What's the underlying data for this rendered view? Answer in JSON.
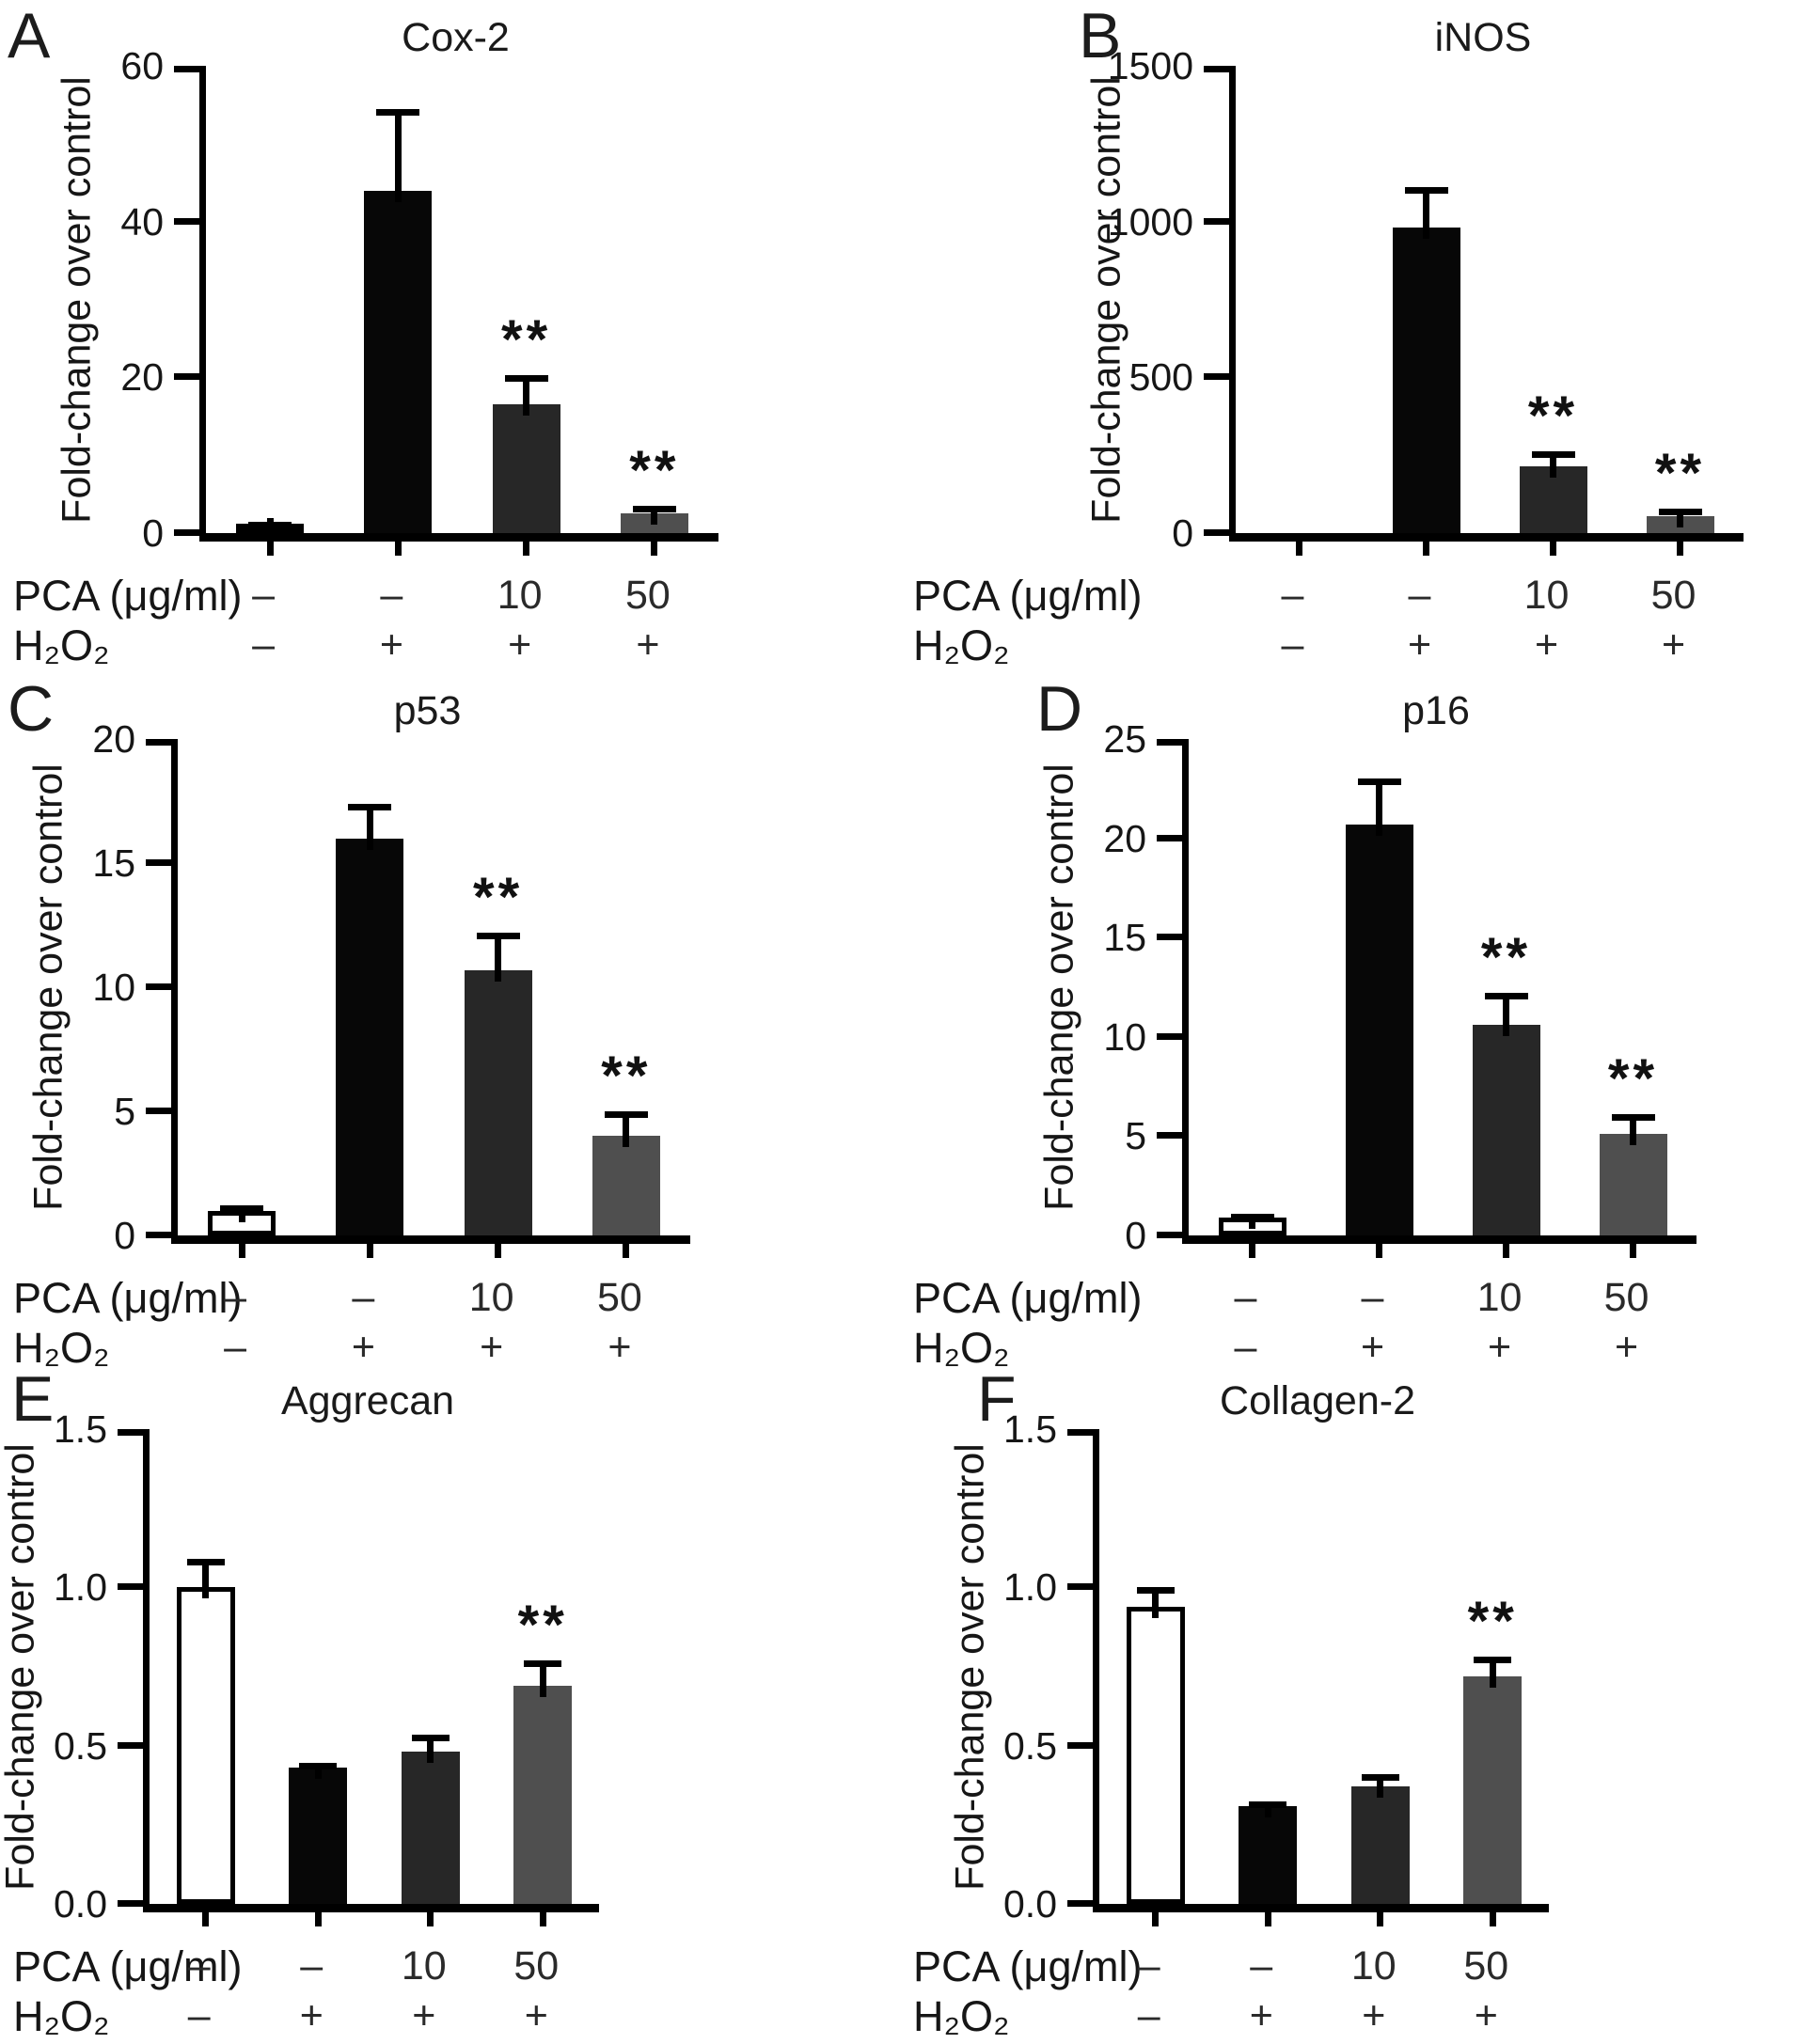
{
  "bar_colors": {
    "white": "#ffffff",
    "black": "#070707",
    "dark": "#272727",
    "gray": "#4f4f4f",
    "outline": "#000000"
  },
  "significance_marker": "**",
  "chart_data": [
    {
      "type": "bar",
      "panel_letter": "A",
      "title": "Cox-2",
      "ylabel": "Fold-change over control",
      "ylim": [
        0,
        60
      ],
      "ytick_values": [
        0,
        20,
        40,
        60
      ],
      "ytick_labels": [
        "0",
        "20",
        "40",
        "60"
      ],
      "categories": [
        "PCA –, H₂O₂ –",
        "PCA –, H₂O₂ +",
        "PCA 10, H₂O₂ +",
        "PCA 50, H₂O₂ +"
      ],
      "values": [
        1.0,
        44,
        16.5,
        2.5
      ],
      "errors": [
        0.5,
        10.5,
        3.8,
        1.0
      ],
      "significance": [
        "",
        "",
        "**",
        "**"
      ],
      "bar_styles": [
        "white",
        "black",
        "dark",
        "gray"
      ],
      "x_rows": [
        {
          "label": "PCA (μg/ml)",
          "values": [
            "–",
            "–",
            "10",
            "50"
          ]
        },
        {
          "label": "H₂O₂",
          "values": [
            "–",
            "+",
            "+",
            "+"
          ]
        }
      ]
    },
    {
      "type": "bar",
      "panel_letter": "B",
      "title": "iNOS",
      "ylabel": "Fold-change over control",
      "ylim": [
        0,
        1500
      ],
      "ytick_values": [
        0,
        500,
        1000,
        1500
      ],
      "ytick_labels": [
        "0",
        "500",
        "1000",
        "1500"
      ],
      "categories": [
        "PCA –, H₂O₂ –",
        "PCA –, H₂O₂ +",
        "PCA 10, H₂O₂ +",
        "PCA 50, H₂O₂ +"
      ],
      "values": [
        1,
        980,
        215,
        55
      ],
      "errors": [
        0,
        130,
        48,
        25
      ],
      "significance": [
        "",
        "",
        "**",
        "**"
      ],
      "bar_styles": [
        "white",
        "black",
        "dark",
        "gray"
      ],
      "x_rows": [
        {
          "label": "PCA (μg/ml)",
          "values": [
            "–",
            "–",
            "10",
            "50"
          ]
        },
        {
          "label": "H₂O₂",
          "values": [
            "–",
            "+",
            "+",
            "+"
          ]
        }
      ]
    },
    {
      "type": "bar",
      "panel_letter": "C",
      "title": "p53",
      "ylabel": "Fold-change over control",
      "ylim": [
        0,
        20
      ],
      "ytick_values": [
        0,
        5,
        10,
        15,
        20
      ],
      "ytick_labels": [
        "0",
        "5",
        "10",
        "15",
        "20"
      ],
      "categories": [
        "PCA –, H₂O₂ –",
        "PCA –, H₂O₂ +",
        "PCA 10, H₂O₂ +",
        "PCA 50, H₂O₂ +"
      ],
      "values": [
        1.0,
        16.0,
        10.7,
        4.0
      ],
      "errors": [
        0.2,
        1.4,
        1.5,
        1.0
      ],
      "significance": [
        "",
        "",
        "**",
        "**"
      ],
      "bar_styles": [
        "white",
        "black",
        "dark",
        "gray"
      ],
      "x_rows": [
        {
          "label": "PCA (μg/ml)",
          "values": [
            "–",
            "–",
            "10",
            "50"
          ]
        },
        {
          "label": "H₂O₂",
          "values": [
            "–",
            "+",
            "+",
            "+"
          ]
        }
      ]
    },
    {
      "type": "bar",
      "panel_letter": "D",
      "title": "p16",
      "ylabel": "Fold-change over control",
      "ylim": [
        0,
        25
      ],
      "ytick_values": [
        0,
        5,
        10,
        15,
        20,
        25
      ],
      "ytick_labels": [
        "0",
        "5",
        "10",
        "15",
        "20",
        "25"
      ],
      "categories": [
        "PCA –, H₂O₂ –",
        "PCA –, H₂O₂ +",
        "PCA 10, H₂O₂ +",
        "PCA 50, H₂O₂ +"
      ],
      "values": [
        0.9,
        20.7,
        10.6,
        5.1
      ],
      "errors": [
        0.2,
        2.3,
        1.6,
        1.0
      ],
      "significance": [
        "",
        "",
        "**",
        "**"
      ],
      "bar_styles": [
        "white",
        "black",
        "dark",
        "gray"
      ],
      "x_rows": [
        {
          "label": "PCA (μg/ml)",
          "values": [
            "–",
            "–",
            "10",
            "50"
          ]
        },
        {
          "label": "H₂O₂",
          "values": [
            "–",
            "+",
            "+",
            "+"
          ]
        }
      ]
    },
    {
      "type": "bar",
      "panel_letter": "E",
      "title": "Aggrecan",
      "ylabel": "Fold-change over control",
      "ylim": [
        0,
        1.5
      ],
      "ytick_values": [
        0,
        0.5,
        1.0,
        1.5
      ],
      "ytick_labels": [
        "0.0",
        "0.5",
        "1.0",
        "1.5"
      ],
      "categories": [
        "PCA –, H₂O₂ –",
        "PCA –, H₂O₂ +",
        "PCA 10, H₂O₂ +",
        "PCA 50, H₂O₂ +"
      ],
      "values": [
        1.0,
        0.43,
        0.48,
        0.69
      ],
      "errors": [
        0.09,
        0.015,
        0.055,
        0.08
      ],
      "significance": [
        "",
        "",
        "",
        "**"
      ],
      "bar_styles": [
        "white",
        "black",
        "dark",
        "gray"
      ],
      "x_rows": [
        {
          "label": "PCA (μg/ml)",
          "values": [
            "–",
            "–",
            "10",
            "50"
          ]
        },
        {
          "label": "H₂O₂",
          "values": [
            "–",
            "+",
            "+",
            "+"
          ]
        }
      ]
    },
    {
      "type": "bar",
      "panel_letter": "F",
      "title": "Collagen-2",
      "ylabel": "Fold-change over control",
      "ylim": [
        0,
        1.5
      ],
      "ytick_values": [
        0,
        0.5,
        1.0,
        1.5
      ],
      "ytick_labels": [
        "0.0",
        "0.5",
        "1.0",
        "1.5"
      ],
      "categories": [
        "PCA –, H₂O₂ –",
        "PCA –, H₂O₂ +",
        "PCA 10, H₂O₂ +",
        "PCA 50, H₂O₂ +"
      ],
      "values": [
        0.94,
        0.31,
        0.37,
        0.72
      ],
      "errors": [
        0.06,
        0.015,
        0.04,
        0.06
      ],
      "significance": [
        "",
        "",
        "",
        "**"
      ],
      "bar_styles": [
        "white",
        "black",
        "dark",
        "gray"
      ],
      "x_rows": [
        {
          "label": "PCA (μg/ml)",
          "values": [
            "–",
            "–",
            "10",
            "50"
          ]
        },
        {
          "label": "H₂O₂",
          "values": [
            "–",
            "+",
            "+",
            "+"
          ]
        }
      ]
    }
  ]
}
